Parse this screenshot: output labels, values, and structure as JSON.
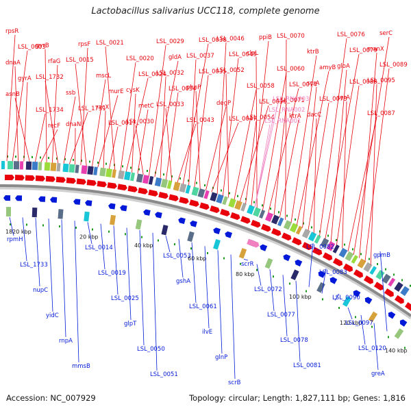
{
  "title": "Lactobacillus salivarius UCC118, complete genome",
  "footer": {
    "accession": "Accession: NC_007929",
    "topology": "Topology: circular; Length: 1,827,111 bp; Genes: 1,816"
  },
  "colors": {
    "forward": "#e8000b",
    "reverse": "#0018d8",
    "rna": "#f080c0",
    "backbone": "#8a8a8a",
    "tick": "#1a9a1a"
  },
  "kbp_ticks": [
    "1820 kbp",
    "20 kbp",
    "40 kbp",
    "60 kbp",
    "80 kbp",
    "100 kbp",
    "120 kbp",
    "140 kbp"
  ],
  "forward_labels": [
    "rpsR",
    "LSL_0003",
    "dnaA",
    "gyrA",
    "asnB",
    "LSL_1734",
    "recF",
    "gyrB",
    "rfaG",
    "LSL_1732",
    "ssb",
    "LSL_1731",
    "dnaN",
    "rpsF",
    "LSL_0015",
    "mscL",
    "murE",
    "racX",
    "LSL_0017",
    "LSL_0021",
    "LSL_0020",
    "LSL_0024",
    "cysK",
    "metC",
    "LSL_0030",
    "LSL_0029",
    "gldA",
    "LSL_0032",
    "LSL_0034",
    "LSL_0033",
    "LSL_0043",
    "LSL_0038",
    "LSL_0037",
    "LSL_0035",
    "phnP",
    "degP",
    "LSL_0047",
    "LSL_0046",
    "LSL_0049",
    "LSL_0052",
    "LSL_0058",
    "LSL_0056",
    "LSL_0054",
    "ppiB",
    "clpL",
    "LSL_0060",
    "LSL_0074",
    "LSL_0071",
    "ktrA",
    "LSL_0070",
    "ktrB",
    "amyB",
    "scrA",
    "LSL_0073",
    "dacC",
    "LSL_0076",
    "LSL_0079",
    "gloA",
    "LSL_0088",
    "serA",
    "LSL_0087",
    "serC",
    "manX",
    "LSL_0089",
    "LSL_0095"
  ],
  "rna_labels": [
    "LSL_RNA003",
    "LSL_RNA002",
    "LSL_RNA001"
  ],
  "reverse_labels": [
    "rpmH",
    "LSL_1733",
    "nupC",
    "yidC",
    "rnpA",
    "mmsB",
    "LSL_0014",
    "LSL_0019",
    "LSL_0025",
    "glpT",
    "LSL_0050",
    "LSL_0051",
    "LSL_0053",
    "gshA",
    "LSL_0061",
    "ilvE",
    "glnP",
    "scrB",
    "scrR",
    "LSL_0072",
    "LSL_0077",
    "LSL_0078",
    "LSL_0081",
    "LSL_0082",
    "LSL_0083",
    "LSL_0090",
    "LSL_0097",
    "LSL_0120",
    "greA",
    "gpmB"
  ]
}
